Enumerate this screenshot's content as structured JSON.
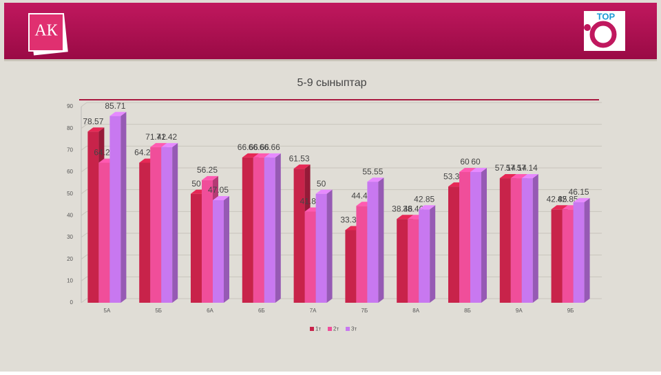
{
  "header": {
    "left_logo": "АК",
    "right_logo": "ТОР"
  },
  "chart_data": {
    "type": "bar",
    "title": "5-9 сыныптар",
    "categories": [
      "5А",
      "5Б",
      "6А",
      "6Б",
      "7А",
      "7Б",
      "8А",
      "8Б",
      "9А",
      "9Б"
    ],
    "series": [
      {
        "name": "1т",
        "color": "#c8234a",
        "values": [
          78.57,
          64.28,
          50,
          66.66,
          61.53,
          33.33,
          38.46,
          53.33,
          57.14,
          42.85
        ]
      },
      {
        "name": "2т",
        "color": "#f04e9a",
        "values": [
          64.28,
          71.42,
          56.25,
          66.66,
          41.85,
          44.44,
          38.46,
          60,
          57.14,
          42.85
        ]
      },
      {
        "name": "3т",
        "color": "#c878f0",
        "values": [
          85.71,
          71.42,
          47.05,
          66.66,
          50,
          55.55,
          42.85,
          60,
          57.14,
          46.15
        ]
      }
    ],
    "ylim": [
      0,
      90
    ],
    "yticks": [
      0,
      10,
      20,
      30,
      40,
      50,
      60,
      70,
      80,
      90
    ],
    "grid": true,
    "legend": "bottom"
  }
}
